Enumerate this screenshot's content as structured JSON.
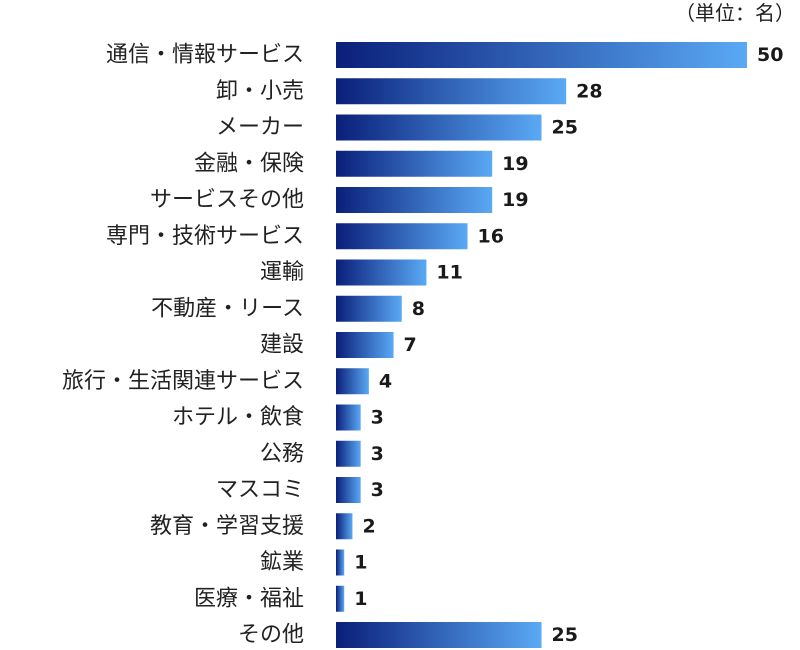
{
  "chart_data": {
    "type": "bar",
    "orientation": "horizontal",
    "unit_note": "（単位：名）",
    "categories": [
      "通信・情報サービス",
      "卸・小売",
      "メーカー",
      "金融・保険",
      "サービスその他",
      "専門・技術サービス",
      "運輸",
      "不動産・リース",
      "建設",
      "旅行・生活関連サービス",
      "ホテル・飲食",
      "公務",
      "マスコミ",
      "教育・学習支援",
      "鉱業",
      "医療・福祉",
      "その他"
    ],
    "values": [
      50,
      28,
      25,
      19,
      19,
      16,
      11,
      8,
      7,
      4,
      3,
      3,
      3,
      2,
      1,
      1,
      25
    ],
    "xlim": [
      0,
      50
    ],
    "grid": false,
    "legend": "none",
    "colors": {
      "bar_start": "#0a1f7a",
      "bar_end": "#5aa9f5"
    }
  }
}
